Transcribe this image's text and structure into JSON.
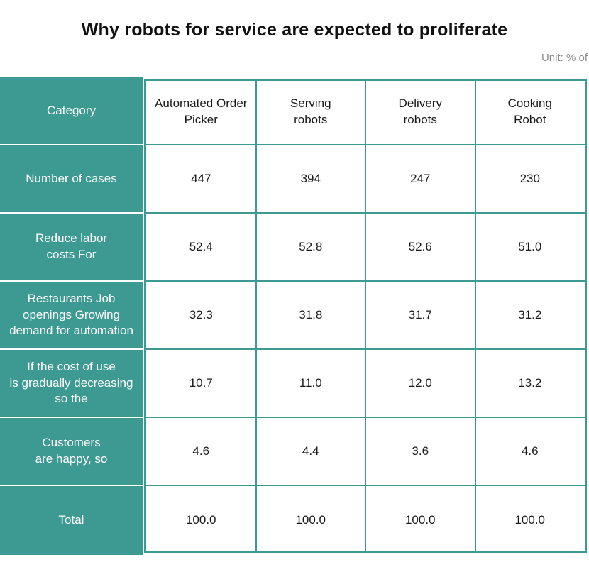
{
  "title": "Why robots for service are expected to proliferate",
  "unit": "Unit: % of",
  "colors": {
    "teal": "#3d9a92",
    "white": "#ffffff"
  },
  "chart_data": {
    "type": "table",
    "title": "Why robots for service are expected to proliferate",
    "unit": "Unit: % of",
    "corner": "Category",
    "columns": [
      "Automated Order Picker",
      "Serving robots",
      "Delivery robots",
      "Cooking Robot"
    ],
    "rows": [
      {
        "label": "Number of cases",
        "values": [
          "447",
          "394",
          "247",
          "230"
        ]
      },
      {
        "label": "Reduce labor costs For",
        "values": [
          "52.4",
          "52.8",
          "52.6",
          "51.0"
        ]
      },
      {
        "label": "Restaurants Job openings Growing demand for automation",
        "values": [
          "32.3",
          "31.8",
          "31.7",
          "31.2"
        ]
      },
      {
        "label": "If the cost of use is gradually decreasing so the",
        "values": [
          "10.7",
          "11.0",
          "12.0",
          "13.2"
        ]
      },
      {
        "label": "Customers are happy, so",
        "values": [
          "4.6",
          "4.4",
          "3.6",
          "4.6"
        ]
      },
      {
        "label": "Total",
        "values": [
          "100.0",
          "100.0",
          "100.0",
          "100.0"
        ]
      }
    ]
  }
}
